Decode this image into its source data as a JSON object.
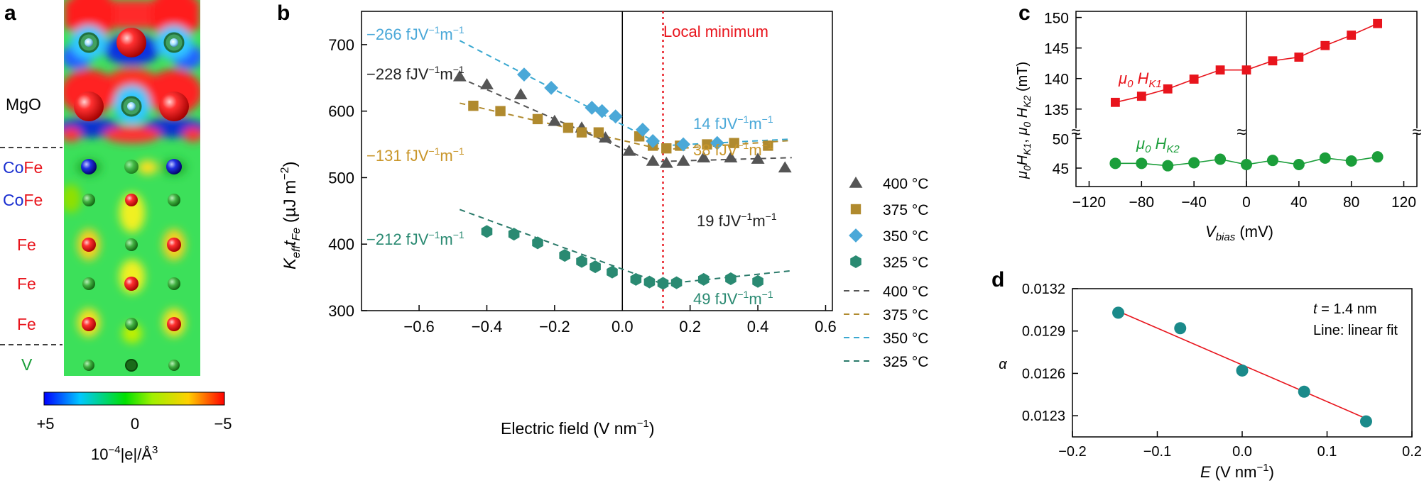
{
  "panels": {
    "a": {
      "letter": "a",
      "layer_labels": [
        {
          "parts": [
            {
              "t": "MgO",
              "c": "black"
            }
          ]
        },
        {
          "parts": [
            {
              "t": "Co",
              "c": "blue"
            },
            {
              "t": "Fe",
              "c": "red"
            }
          ]
        },
        {
          "parts": [
            {
              "t": "Co",
              "c": "blue"
            },
            {
              "t": "Fe",
              "c": "red"
            }
          ]
        },
        {
          "parts": [
            {
              "t": "Fe",
              "c": "red"
            }
          ]
        },
        {
          "parts": [
            {
              "t": "Fe",
              "c": "red"
            }
          ]
        },
        {
          "parts": [
            {
              "t": "Fe",
              "c": "red"
            }
          ]
        },
        {
          "parts": [
            {
              "t": "V",
              "c": "green"
            }
          ]
        }
      ],
      "colorbar_ticks": [
        "+5",
        "0",
        "−5"
      ],
      "colorbar_label": "10−4|e|/Å3"
    },
    "b": {
      "letter": "b",
      "local_minimum_label": "Local minimum",
      "local_minimum_x": 0.12
    },
    "c": {
      "letter": "c",
      "break_mark": "≈"
    },
    "d": {
      "letter": "d",
      "annotation_t": "t = 1.4 nm",
      "annotation_line": "Line: linear fit"
    }
  },
  "colors": {
    "c400": "#555555",
    "c375": "#b08a2e",
    "c350": "#4aa8d8",
    "c325": "#2a8a72",
    "fit350": "#3aa8d0",
    "fit325": "#2a7a6a",
    "red": "#e8141c",
    "green": "#1b9e3a",
    "teal": "#1a8a8a",
    "blue": "#1a2fd0",
    "localmin": "#e8141c"
  },
  "chart_data": [
    {
      "id": "b",
      "type": "scatter",
      "xlabel": "Electric field (V nm−1)",
      "ylabel": "Keff tFe (µJ m−2)",
      "xlim": [
        -0.77,
        0.62
      ],
      "ylim": [
        300,
        750
      ],
      "xticks": [
        -0.6,
        -0.4,
        -0.2,
        0.0,
        0.2,
        0.4,
        0.6
      ],
      "xtick_labels": [
        "−0.6",
        "−0.4",
        "−0.2",
        "0.0",
        "0.2",
        "0.4",
        "0.6"
      ],
      "yticks": [
        300,
        400,
        500,
        600,
        700
      ],
      "ytick_labels": [
        "300",
        "400",
        "500",
        "600",
        "700"
      ],
      "series": [
        {
          "name": "400 °C",
          "marker": "triangle",
          "color": "#555555",
          "x": [
            -0.48,
            -0.4,
            -0.3,
            -0.2,
            -0.12,
            -0.05,
            0.02,
            0.09,
            0.13,
            0.18,
            0.24,
            0.32,
            0.4,
            0.48
          ],
          "y": [
            652,
            640,
            625,
            585,
            575,
            560,
            540,
            525,
            522,
            525,
            530,
            530,
            528,
            515
          ]
        },
        {
          "name": "375 °C",
          "marker": "square",
          "color": "#b08a2e",
          "x": [
            -0.44,
            -0.36,
            -0.25,
            -0.16,
            -0.12,
            -0.07,
            0.05,
            0.09,
            0.13,
            0.17,
            0.25,
            0.33,
            0.43
          ],
          "y": [
            608,
            600,
            588,
            575,
            568,
            568,
            562,
            548,
            544,
            548,
            550,
            552,
            548
          ]
        },
        {
          "name": "350 °C",
          "marker": "diamond",
          "color": "#4aa8d8",
          "x": [
            -0.29,
            -0.21,
            -0.09,
            -0.06,
            -0.02,
            0.06,
            0.09,
            0.18,
            0.28
          ],
          "y": [
            655,
            635,
            605,
            600,
            592,
            572,
            555,
            550,
            552
          ]
        },
        {
          "name": "325 °C",
          "marker": "hexagon",
          "color": "#2a8a72",
          "x": [
            -0.4,
            -0.32,
            -0.25,
            -0.17,
            -0.12,
            -0.08,
            -0.03,
            0.04,
            0.08,
            0.12,
            0.16,
            0.24,
            0.32,
            0.4
          ],
          "y": [
            419,
            415,
            402,
            383,
            374,
            366,
            358,
            347,
            343,
            341,
            342,
            347,
            348,
            344
          ]
        }
      ],
      "fits": [
        {
          "name": "400 °C",
          "color": "#555555",
          "x": [
            -0.48,
            0.09,
            0.5
          ],
          "y": [
            650,
            524,
            530
          ]
        },
        {
          "name": "375 °C",
          "color": "#b08a2e",
          "x": [
            -0.48,
            0.12,
            0.5
          ],
          "y": [
            612,
            542,
            556
          ]
        },
        {
          "name": "350 °C",
          "color": "#3aa8d0",
          "x": [
            -0.48,
            0.12,
            0.5
          ],
          "y": [
            706,
            548,
            558
          ]
        },
        {
          "name": "325 °C",
          "color": "#2a7a6a",
          "x": [
            -0.48,
            0.12,
            0.5
          ],
          "y": [
            452,
            340,
            360
          ]
        }
      ],
      "slope_annotations": [
        {
          "pre": "−266 fJV",
          "sup1": "−1",
          "mid": "m",
          "sup2": "−1",
          "color": "#4aa8d8"
        },
        {
          "pre": "−228 fJV",
          "sup1": "−1",
          "mid": "m",
          "sup2": "−1",
          "color": "#222222"
        },
        {
          "pre": "−131 fJV",
          "sup1": "−1",
          "mid": "m",
          "sup2": "−1",
          "color": "#c9962a"
        },
        {
          "pre": "−212 fJV",
          "sup1": "−1",
          "mid": "m",
          "sup2": "−1",
          "color": "#2a8a72"
        },
        {
          "pre": "14 fJV",
          "sup1": "−1",
          "mid": "m",
          "sup2": "−1",
          "color": "#4aa8d8"
        },
        {
          "pre": "38 fJV",
          "sup1": "−1",
          "mid": "m",
          "sup2": "−1",
          "color": "#c9962a"
        },
        {
          "pre": "19 fJV",
          "sup1": "−1",
          "mid": "m",
          "sup2": "−1",
          "color": "#222222"
        },
        {
          "pre": "49 fJV",
          "sup1": "−1",
          "mid": "m",
          "sup2": "−1",
          "color": "#2a8a72"
        }
      ],
      "legend_markers": [
        "400 °C",
        "375 °C",
        "350 °C",
        "325 °C"
      ],
      "legend_lines": [
        "400 °C",
        "375 °C",
        "350 °C",
        "325 °C"
      ]
    },
    {
      "id": "c",
      "type": "line",
      "xlabel": "Vbias (mV)",
      "ylabel": "µ0 HK1, µ0 HK2 (mT)",
      "xlim": [
        -130,
        130
      ],
      "xticks": [
        -120,
        -80,
        -40,
        0,
        40,
        80,
        120
      ],
      "xtick_labels": [
        "−120",
        "−80",
        "−40",
        "0",
        "40",
        "80",
        "120"
      ],
      "yticks_upper": [
        135,
        140,
        145,
        150
      ],
      "yticks_lower": [
        45,
        50
      ],
      "ytick_labels": [
        "135",
        "140",
        "145",
        "150",
        "45",
        "50"
      ],
      "series": [
        {
          "name": "µ0 HK1",
          "color": "#e8141c",
          "marker": "square",
          "x": [
            -100,
            -80,
            -60,
            -40,
            -20,
            0,
            20,
            40,
            60,
            80,
            100
          ],
          "y": [
            136.1,
            137.1,
            138.3,
            139.9,
            141.4,
            141.4,
            142.9,
            143.5,
            145.4,
            147.1,
            149.0
          ]
        },
        {
          "name": "µ0 HK2",
          "color": "#1b9e3a",
          "marker": "circle",
          "x": [
            -100,
            -80,
            -60,
            -40,
            -20,
            0,
            20,
            40,
            60,
            80,
            100
          ],
          "y": [
            45.8,
            45.8,
            45.4,
            45.9,
            46.5,
            45.6,
            46.3,
            45.6,
            46.7,
            46.2,
            46.9
          ]
        }
      ]
    },
    {
      "id": "d",
      "type": "scatter",
      "xlabel": "E (V nm−1)",
      "ylabel": "α",
      "xlim": [
        -0.2,
        0.2
      ],
      "ylim": [
        0.01215,
        0.0132
      ],
      "xticks": [
        -0.2,
        -0.1,
        0.0,
        0.1,
        0.2
      ],
      "xtick_labels": [
        "−0.2",
        "−0.1",
        "0.0",
        "0.1",
        "0.2"
      ],
      "yticks": [
        0.0123,
        0.0126,
        0.0129,
        0.0132
      ],
      "ytick_labels": [
        "0.0123",
        "0.0126",
        "0.0129",
        "0.0132"
      ],
      "series": [
        {
          "name": "α",
          "color": "#1a8a8a",
          "x": [
            -0.146,
            -0.073,
            0.0,
            0.073,
            0.146
          ],
          "y": [
            0.01303,
            0.01292,
            0.01262,
            0.01247,
            0.01226
          ]
        }
      ],
      "fit": {
        "name": "linear fit",
        "color": "#e8141c",
        "x": [
          -0.146,
          0.146
        ],
        "y": [
          0.01304,
          0.01228
        ]
      }
    }
  ]
}
